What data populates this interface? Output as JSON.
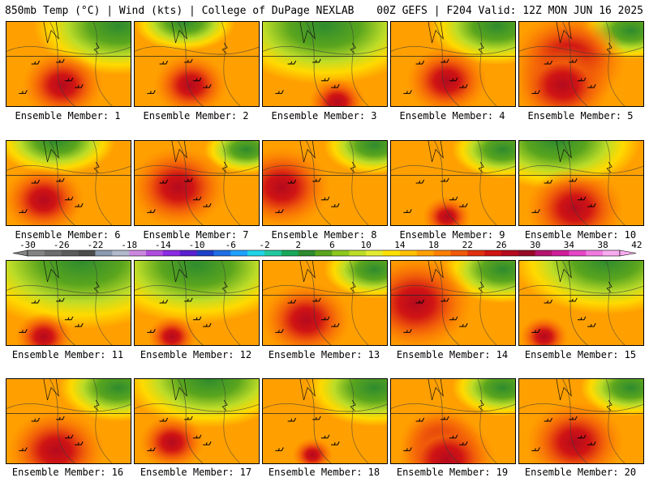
{
  "header": {
    "left": "850mb Temp (°C) | Wind (kts) | College of DuPage NEXLAB",
    "right": "00Z GEFS | F204 Valid: 12Z MON JUN 16 2025"
  },
  "panels": [
    {
      "label": "Ensemble Member: 1"
    },
    {
      "label": "Ensemble Member: 2"
    },
    {
      "label": "Ensemble Member: 3"
    },
    {
      "label": "Ensemble Member: 4"
    },
    {
      "label": "Ensemble Member: 5"
    },
    {
      "label": "Ensemble Member: 6"
    },
    {
      "label": "Ensemble Member: 7"
    },
    {
      "label": "Ensemble Member: 8"
    },
    {
      "label": "Ensemble Member: 9"
    },
    {
      "label": "Ensemble Member: 10"
    },
    {
      "label": "Ensemble Member: 11"
    },
    {
      "label": "Ensemble Member: 12"
    },
    {
      "label": "Ensemble Member: 13"
    },
    {
      "label": "Ensemble Member: 14"
    },
    {
      "label": "Ensemble Member: 15"
    },
    {
      "label": "Ensemble Member: 16"
    },
    {
      "label": "Ensemble Member: 17"
    },
    {
      "label": "Ensemble Member: 18"
    },
    {
      "label": "Ensemble Member: 19"
    },
    {
      "label": "Ensemble Member: 20"
    }
  ],
  "colorbar": {
    "ticks": [
      "-30",
      "-26",
      "-22",
      "-18",
      "-14",
      "-10",
      "-6",
      "-2",
      "2",
      "6",
      "10",
      "14",
      "18",
      "22",
      "26",
      "30",
      "34",
      "38",
      "42"
    ],
    "colors": [
      "#848484",
      "#6e6e6e",
      "#5c5c5c",
      "#4c4c4c",
      "#8a9ab0",
      "#b0b8cc",
      "#cc88e0",
      "#b04ce0",
      "#8a2be2",
      "#5a1fd0",
      "#1e3fc8",
      "#1e6ee6",
      "#1ea0ff",
      "#20d4e8",
      "#20c8a0",
      "#18a85a",
      "#2e8b2e",
      "#5aa51e",
      "#8cc81e",
      "#bcdc28",
      "#e4ec32",
      "#ffe000",
      "#ffc000",
      "#ffa000",
      "#ff8000",
      "#f05a0a",
      "#e03010",
      "#d01414",
      "#b40a1e",
      "#960a28",
      "#b4146e",
      "#d01e9a",
      "#e646c8",
      "#f07ae0",
      "#f8aaf0"
    ]
  }
}
